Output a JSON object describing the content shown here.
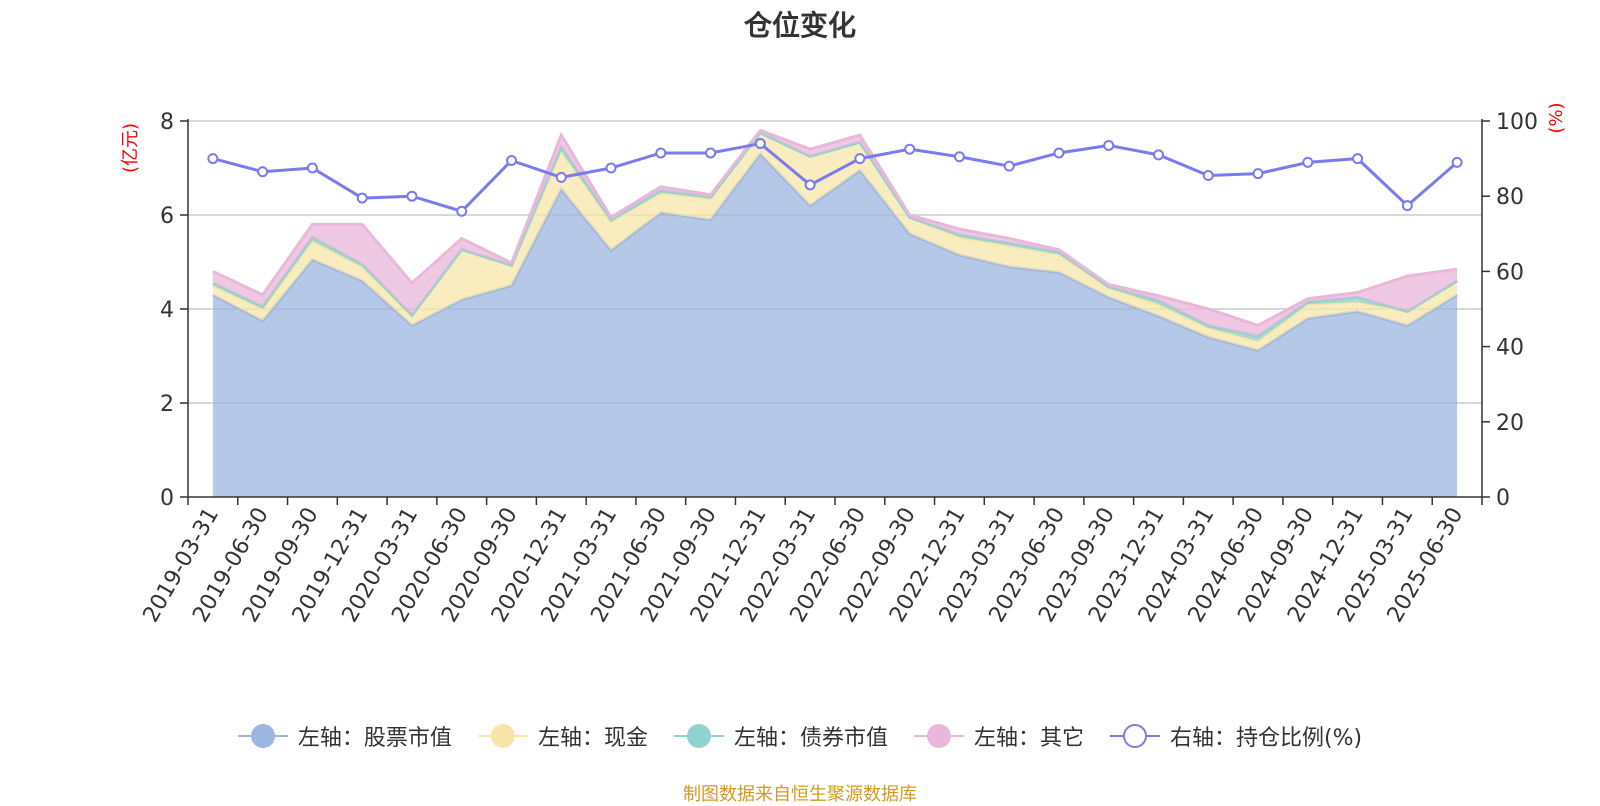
{
  "title": "仓位变化",
  "source_note": "制图数据来自恒生聚源数据库",
  "colors": {
    "stock": "#9db6e0",
    "cash": "#f7e6a8",
    "bond": "#8fd3d0",
    "other": "#e9b7da",
    "ratio": "#7b7bed",
    "axis_title": "#ff0000"
  },
  "legend": [
    {
      "key": "stock",
      "label": "左轴：股票市值"
    },
    {
      "key": "cash",
      "label": "左轴：现金"
    },
    {
      "key": "bond",
      "label": "左轴：债券市值"
    },
    {
      "key": "other",
      "label": "左轴：其它"
    },
    {
      "key": "ratio",
      "label": "右轴：持仓比例(%)"
    }
  ],
  "chart_data": {
    "type": "area",
    "y_left_label": "(亿元)",
    "y_right_label": "(%)",
    "y_left_lim": [
      0,
      8
    ],
    "y_left_ticks": [
      "0",
      "2",
      "4",
      "6",
      "8"
    ],
    "y_right_lim": [
      0,
      100
    ],
    "y_right_ticks": [
      "0",
      "20",
      "40",
      "60",
      "80",
      "100"
    ],
    "grid": true,
    "legend_position": "bottom",
    "categories": [
      "2019-03-31",
      "2019-06-30",
      "2019-09-30",
      "2019-12-31",
      "2020-03-31",
      "2020-06-30",
      "2020-09-30",
      "2020-12-31",
      "2021-03-31",
      "2021-06-30",
      "2021-09-30",
      "2021-12-31",
      "2022-03-31",
      "2022-06-30",
      "2022-09-30",
      "2022-12-31",
      "2023-03-31",
      "2023-06-30",
      "2023-09-30",
      "2023-12-31",
      "2024-03-31",
      "2024-06-30",
      "2024-09-30",
      "2024-12-31",
      "2025-03-31",
      "2025-06-30"
    ],
    "series": [
      {
        "key": "stock",
        "name": "左轴：股票市值",
        "axis": "left",
        "stack": true,
        "values": [
          4.3,
          3.75,
          5.05,
          4.6,
          3.65,
          4.2,
          4.5,
          6.55,
          5.25,
          6.05,
          5.9,
          7.3,
          6.2,
          6.95,
          5.6,
          5.15,
          4.9,
          4.78,
          4.25,
          3.85,
          3.4,
          3.12,
          3.8,
          3.95,
          3.65,
          4.3
        ]
      },
      {
        "key": "cash",
        "name": "左轴：现金",
        "axis": "left",
        "stack": true,
        "values": [
          0.2,
          0.25,
          0.4,
          0.3,
          0.2,
          1.05,
          0.43,
          0.8,
          0.6,
          0.42,
          0.45,
          0.45,
          1.05,
          0.6,
          0.35,
          0.38,
          0.45,
          0.38,
          0.2,
          0.25,
          0.2,
          0.2,
          0.3,
          0.2,
          0.3,
          0.3
        ]
      },
      {
        "key": "bond",
        "name": "左轴：债券市值",
        "axis": "left",
        "stack": true,
        "values": [
          0.05,
          0.05,
          0.08,
          0.05,
          0.02,
          0.02,
          0.0,
          0.1,
          0.05,
          0.05,
          0.03,
          0.0,
          0.0,
          0.0,
          0.0,
          0.05,
          0.05,
          0.05,
          0.02,
          0.08,
          0.05,
          0.1,
          0.05,
          0.1,
          0.0,
          0.0
        ]
      },
      {
        "key": "other",
        "name": "左轴：其它",
        "axis": "left",
        "stack": true,
        "values": [
          0.25,
          0.25,
          0.27,
          0.85,
          0.68,
          0.23,
          0.05,
          0.25,
          0.05,
          0.08,
          0.05,
          0.05,
          0.15,
          0.15,
          0.05,
          0.12,
          0.1,
          0.05,
          0.05,
          0.1,
          0.35,
          0.23,
          0.07,
          0.1,
          0.75,
          0.25
        ]
      },
      {
        "key": "ratio",
        "name": "右轴：持仓比例(%)",
        "axis": "right",
        "stack": false,
        "values": [
          90,
          86.5,
          87.5,
          79.5,
          80,
          76,
          89.5,
          85,
          87.5,
          91.5,
          91.5,
          94,
          83,
          90,
          92.5,
          90.5,
          88,
          91.5,
          93.5,
          91,
          85.5,
          86,
          89,
          90,
          77.5,
          89
        ]
      }
    ]
  }
}
